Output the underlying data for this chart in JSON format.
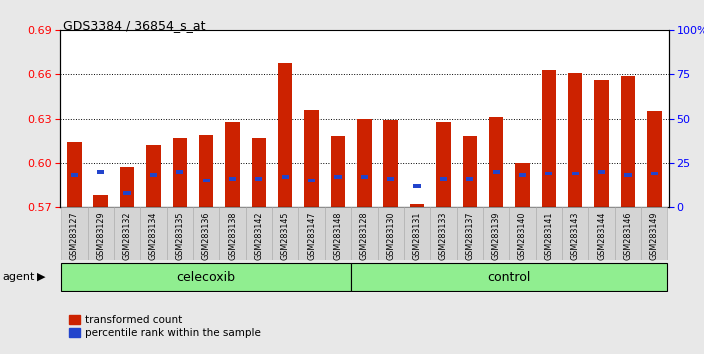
{
  "title": "GDS3384 / 36854_s_at",
  "samples": [
    "GSM283127",
    "GSM283129",
    "GSM283132",
    "GSM283134",
    "GSM283135",
    "GSM283136",
    "GSM283138",
    "GSM283142",
    "GSM283145",
    "GSM283147",
    "GSM283148",
    "GSM283128",
    "GSM283130",
    "GSM283131",
    "GSM283133",
    "GSM283137",
    "GSM283139",
    "GSM283140",
    "GSM283141",
    "GSM283143",
    "GSM283144",
    "GSM283146",
    "GSM283149"
  ],
  "red_values": [
    0.614,
    0.578,
    0.597,
    0.612,
    0.617,
    0.619,
    0.628,
    0.617,
    0.668,
    0.636,
    0.618,
    0.63,
    0.629,
    0.572,
    0.628,
    0.618,
    0.631,
    0.6,
    0.663,
    0.661,
    0.656,
    0.659,
    0.635
  ],
  "blue_pct": [
    18,
    20,
    8,
    18,
    20,
    15,
    16,
    16,
    17,
    15,
    17,
    17,
    16,
    12,
    16,
    16,
    20,
    18,
    19,
    19,
    20,
    18,
    19
  ],
  "celecoxib_count": 11,
  "control_count": 12,
  "ylim_left": [
    0.57,
    0.69
  ],
  "ylim_right": [
    0,
    100
  ],
  "yticks_left": [
    0.57,
    0.6,
    0.63,
    0.66,
    0.69
  ],
  "yticks_right": [
    0,
    25,
    50,
    75,
    100
  ],
  "bar_color_red": "#cc2200",
  "bar_color_blue": "#2244cc",
  "bg_plot": "#ffffff",
  "bg_figure": "#e8e8e8",
  "agent_label": "agent",
  "celecoxib_label": "celecoxib",
  "control_label": "control",
  "legend_red": "transformed count",
  "legend_blue": "percentile rank within the sample",
  "bar_width": 0.55,
  "green_color": "#90ee90"
}
